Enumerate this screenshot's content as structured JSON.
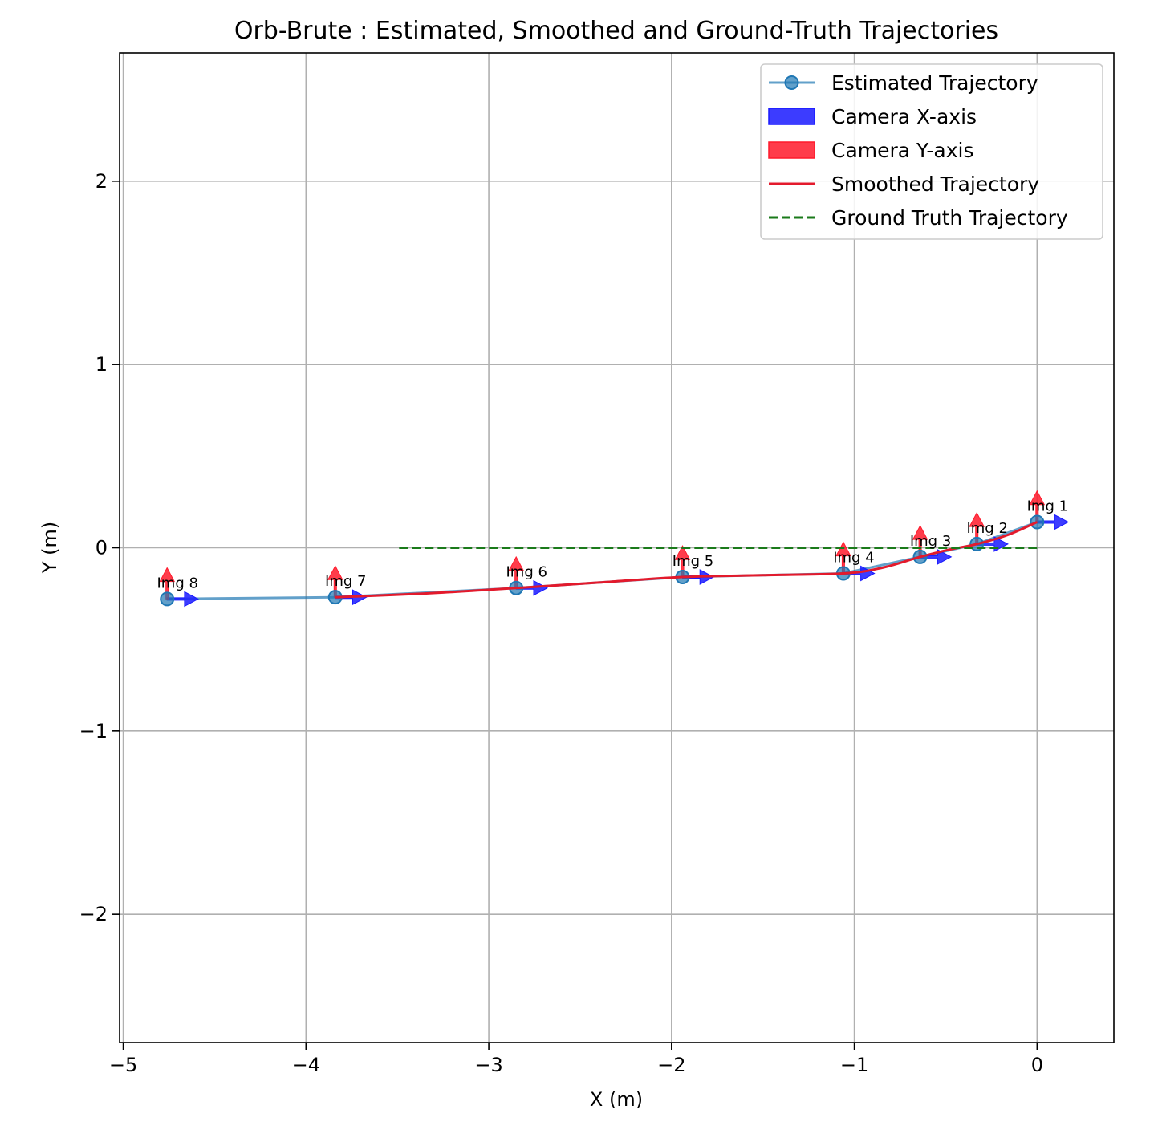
{
  "chart_data": {
    "type": "line",
    "title": "Orb-Brute : Estimated, Smoothed and Ground-Truth Trajectories",
    "xlabel": "X (m)",
    "ylabel": "Y (m)",
    "xlim": [
      -5.02,
      0.42
    ],
    "ylim": [
      -2.7,
      2.7
    ],
    "grid": true,
    "legend_position": "top-right",
    "x_ticks": [
      {
        "value": -5,
        "label": "−5"
      },
      {
        "value": -4,
        "label": "−4"
      },
      {
        "value": -3,
        "label": "−3"
      },
      {
        "value": -2,
        "label": "−2"
      },
      {
        "value": -1,
        "label": "−1"
      },
      {
        "value": 0,
        "label": "0"
      }
    ],
    "y_ticks": [
      {
        "value": -2,
        "label": "−2"
      },
      {
        "value": -1,
        "label": "−1"
      },
      {
        "value": 0,
        "label": "0"
      },
      {
        "value": 1,
        "label": "1"
      },
      {
        "value": 2,
        "label": "2"
      }
    ],
    "series": [
      {
        "name": "Estimated Trajectory",
        "color": "#1f77b4",
        "style": "line-marker",
        "x": [
          0.0,
          -0.33,
          -0.64,
          -1.06,
          -1.94,
          -2.85,
          -3.84,
          -4.76
        ],
        "y": [
          0.14,
          0.02,
          -0.05,
          -0.14,
          -0.16,
          -0.22,
          -0.27,
          -0.28
        ]
      },
      {
        "name": "Smoothed Trajectory",
        "color": "#e31a2c",
        "style": "solid",
        "x": [
          0.0,
          -0.16,
          -0.33,
          -0.48,
          -0.64,
          -0.85,
          -1.06,
          -1.5,
          -1.94,
          -2.4,
          -2.85,
          -3.35,
          -3.84
        ],
        "y": [
          0.14,
          0.07,
          0.02,
          -0.01,
          -0.05,
          -0.11,
          -0.14,
          -0.15,
          -0.16,
          -0.19,
          -0.22,
          -0.25,
          -0.27
        ]
      },
      {
        "name": "Ground Truth Trajectory",
        "color": "#1a7a1a",
        "style": "dashed",
        "x": [
          0.0,
          -3.5
        ],
        "y": [
          0.0,
          0.0
        ]
      }
    ],
    "camera_axes": {
      "x_axis_name": "Camera X-axis",
      "x_axis_color": "#1a1aff",
      "y_axis_name": "Camera Y-axis",
      "y_axis_color": "#ff1a2c",
      "arrow_length": 0.17
    },
    "annotations": [
      {
        "label": "Img 1",
        "x": 0.0,
        "y": 0.14
      },
      {
        "label": "Img 2",
        "x": -0.33,
        "y": 0.02
      },
      {
        "label": "Img 3",
        "x": -0.64,
        "y": -0.05
      },
      {
        "label": "Img 4",
        "x": -1.06,
        "y": -0.14
      },
      {
        "label": "Img 5",
        "x": -1.94,
        "y": -0.16
      },
      {
        "label": "Img 6",
        "x": -2.85,
        "y": -0.22
      },
      {
        "label": "Img 7",
        "x": -3.84,
        "y": -0.27
      },
      {
        "label": "Img 8",
        "x": -4.76,
        "y": -0.28
      }
    ],
    "legend": [
      {
        "label": "Estimated Trajectory",
        "kind": "line-marker",
        "color": "#1f77b4"
      },
      {
        "label": "Camera X-axis",
        "kind": "patch",
        "color": "#1a1aff"
      },
      {
        "label": "Camera Y-axis",
        "kind": "patch",
        "color": "#ff1a2c"
      },
      {
        "label": "Smoothed Trajectory",
        "kind": "line",
        "color": "#e31a2c"
      },
      {
        "label": "Ground Truth Trajectory",
        "kind": "dashed",
        "color": "#1a7a1a"
      }
    ]
  }
}
